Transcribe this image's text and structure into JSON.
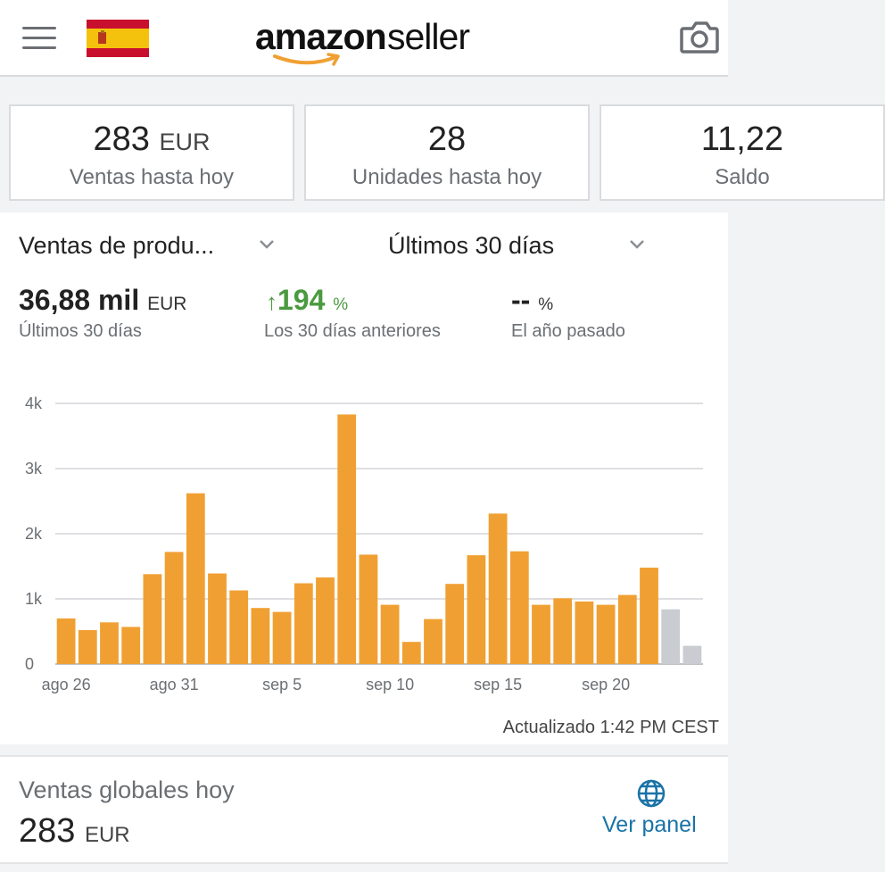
{
  "header": {
    "logo_primary": "amazon",
    "logo_secondary": "seller",
    "icons": {
      "menu": "hamburger-menu-icon",
      "flag": "spain-flag-icon",
      "camera": "camera-icon"
    }
  },
  "summary_cards": [
    {
      "value": "283",
      "unit": "EUR",
      "label": "Ventas hasta hoy"
    },
    {
      "value": "28",
      "unit": "",
      "label": "Unidades hasta hoy"
    },
    {
      "value": "11,22",
      "unit": "",
      "label": "Saldo"
    }
  ],
  "sales_panel": {
    "metric_dropdown": "Ventas de produ...",
    "period_dropdown": "Últimos 30 días",
    "metrics": {
      "current": {
        "value": "36,88 mil",
        "unit": "EUR",
        "label": "Últimos 30 días"
      },
      "previous": {
        "arrow": "↑",
        "value": "194",
        "unit": "%",
        "label": "Los 30 días anteriores",
        "color": "#4a9a3f"
      },
      "last_year": {
        "value": "--",
        "unit": "%",
        "label": "El año pasado"
      }
    },
    "updated": "Actualizado 1:42 PM CEST"
  },
  "chart_data": {
    "type": "bar",
    "y_ticks": [
      "4k",
      "3k",
      "2k",
      "1k",
      "0"
    ],
    "ylim": [
      0,
      4000
    ],
    "x_tick_labels": [
      "ago 26",
      "ago 31",
      "sep 5",
      "sep 10",
      "sep 15",
      "sep 20"
    ],
    "categories": [
      "ago 26",
      "ago 27",
      "ago 28",
      "ago 29",
      "ago 30",
      "ago 31",
      "sep 1",
      "sep 2",
      "sep 3",
      "sep 4",
      "sep 5",
      "sep 6",
      "sep 7",
      "sep 8",
      "sep 9",
      "sep 10",
      "sep 11",
      "sep 12",
      "sep 13",
      "sep 14",
      "sep 15",
      "sep 16",
      "sep 17",
      "sep 18",
      "sep 19",
      "sep 20",
      "sep 21",
      "sep 22",
      "sep 23",
      "sep 24"
    ],
    "values": [
      700,
      520,
      640,
      570,
      1380,
      1720,
      2620,
      1390,
      1130,
      860,
      800,
      1240,
      1330,
      3830,
      1680,
      910,
      340,
      690,
      1230,
      1670,
      2310,
      1730,
      910,
      1010,
      960,
      910,
      1060,
      1480,
      840,
      280
    ],
    "bar_color": "#f0a032",
    "partial_color": "#c9ccd1",
    "partial_from_index": 28,
    "grid": true
  },
  "global_sales": {
    "title": "Ventas globales hoy",
    "value": "283",
    "unit": "EUR",
    "link": "Ver panel",
    "icon": "globe-icon"
  }
}
